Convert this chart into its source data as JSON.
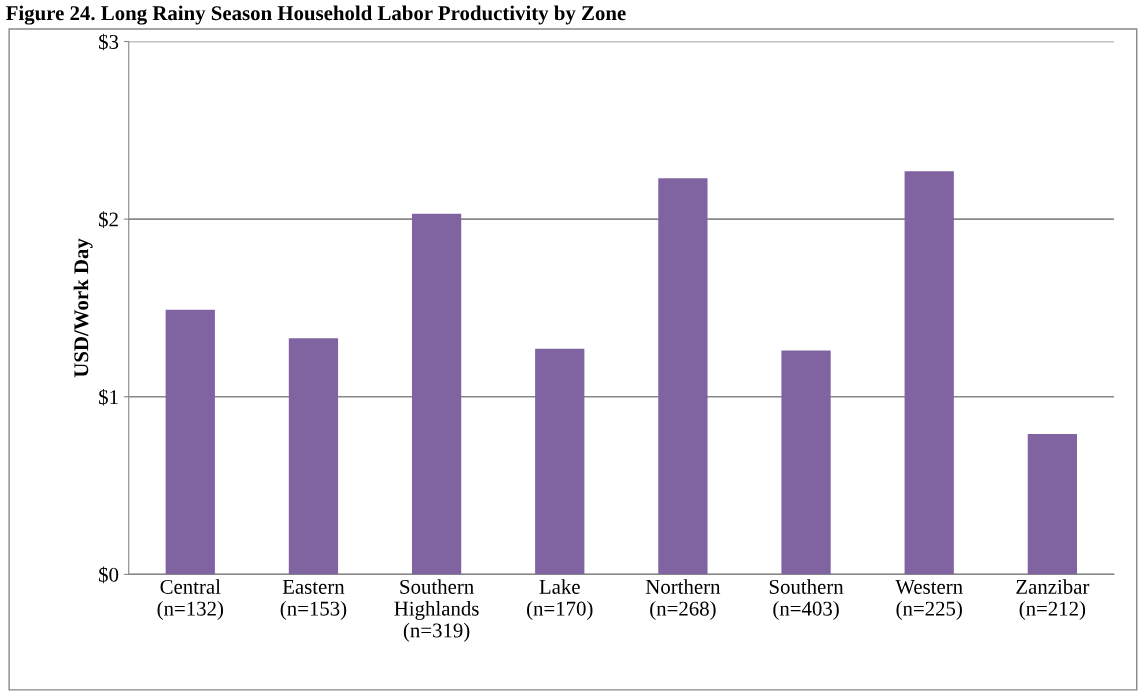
{
  "chart_data": {
    "type": "bar",
    "title": "Figure 24. Long Rainy Season Household Labor Productivity by Zone",
    "ylabel": "USD/Work Day",
    "categories": [
      "Central\n(n=132)",
      "Eastern\n(n=153)",
      "Southern\nHighlands\n(n=319)",
      "Lake\n(n=170)",
      "Northern\n(n=268)",
      "Southern\n(n=403)",
      "Western\n(n=225)",
      "Zanzibar\n(n=212)"
    ],
    "values": [
      1.49,
      1.33,
      2.03,
      1.27,
      2.23,
      1.26,
      2.27,
      0.79
    ],
    "color": "#8064a2",
    "ylim": [
      0,
      3
    ],
    "yticks": [
      {
        "value": 0,
        "label": "$0"
      },
      {
        "value": 1,
        "label": "$1"
      },
      {
        "value": 2,
        "label": "$2"
      },
      {
        "value": 3,
        "label": "$3"
      }
    ],
    "grid": "y",
    "legend": false
  }
}
